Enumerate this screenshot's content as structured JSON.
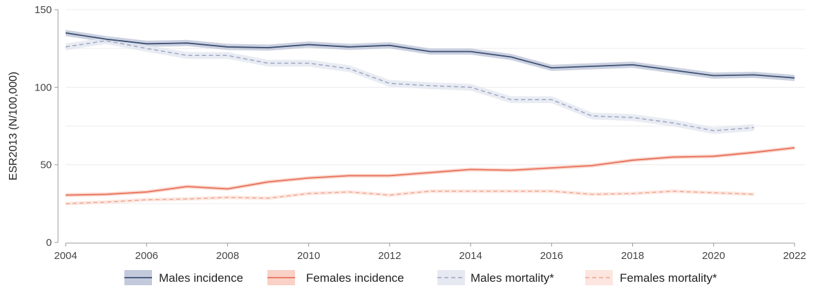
{
  "chart_data": {
    "type": "line",
    "ylabel": "ESR2013 (N/100,000)",
    "xlabel": "",
    "xlim": [
      2004,
      2022
    ],
    "ylim": [
      0,
      150
    ],
    "x_ticks": [
      "2004",
      "2006",
      "2008",
      "2010",
      "2012",
      "2014",
      "2016",
      "2018",
      "2020",
      "2022"
    ],
    "y_ticks": [
      "0",
      "50",
      "100",
      "150"
    ],
    "grid": "horizontal",
    "legend_position": "bottom",
    "series": [
      {
        "name": "Males incidence",
        "style": "solid",
        "color": "#3d4f73",
        "band_color": "#b9c1d6",
        "x": [
          2004,
          2005,
          2006,
          2007,
          2008,
          2009,
          2010,
          2011,
          2012,
          2013,
          2014,
          2015,
          2016,
          2017,
          2018,
          2019,
          2020,
          2021,
          2022
        ],
        "values": [
          135,
          131,
          128,
          128.5,
          126,
          125.5,
          127.5,
          126,
          127,
          123,
          123,
          119.5,
          112.5,
          113.5,
          114.5,
          111,
          107.5,
          108,
          106
        ],
        "band": 2
      },
      {
        "name": "Females incidence",
        "style": "solid",
        "color": "#e8705a",
        "band_color": "#f8c9bc",
        "x": [
          2004,
          2005,
          2006,
          2007,
          2008,
          2009,
          2010,
          2011,
          2012,
          2013,
          2014,
          2015,
          2016,
          2017,
          2018,
          2019,
          2020,
          2021,
          2022
        ],
        "values": [
          30.5,
          31,
          32.5,
          36,
          34.5,
          39,
          41.5,
          43,
          43,
          45,
          47,
          46.5,
          48,
          49.5,
          53,
          55,
          55.5,
          58,
          61
        ],
        "band": 1.2
      },
      {
        "name": "Males mortality*",
        "style": "dashed",
        "color": "#9ea6c2",
        "band_color": "#e2e5ef",
        "x": [
          2004,
          2005,
          2006,
          2007,
          2008,
          2009,
          2010,
          2011,
          2012,
          2013,
          2014,
          2015,
          2016,
          2017,
          2018,
          2019,
          2020,
          2021
        ],
        "values": [
          126,
          130,
          125,
          120.5,
          120.5,
          115.5,
          115.5,
          112,
          102.5,
          101,
          100,
          92,
          92,
          81.5,
          80.5,
          77,
          72,
          74
        ],
        "band": 2.2
      },
      {
        "name": "Females mortality*",
        "style": "dashed",
        "color": "#f2a68f",
        "band_color": "#fbe2d9",
        "x": [
          2004,
          2005,
          2006,
          2007,
          2008,
          2009,
          2010,
          2011,
          2012,
          2013,
          2014,
          2015,
          2016,
          2017,
          2018,
          2019,
          2020,
          2021
        ],
        "values": [
          25,
          26,
          27.5,
          28,
          29,
          28.5,
          31.5,
          32.5,
          30.5,
          33,
          33,
          33,
          33,
          31,
          31.5,
          33,
          32,
          31
        ],
        "band": 1.2
      }
    ]
  }
}
